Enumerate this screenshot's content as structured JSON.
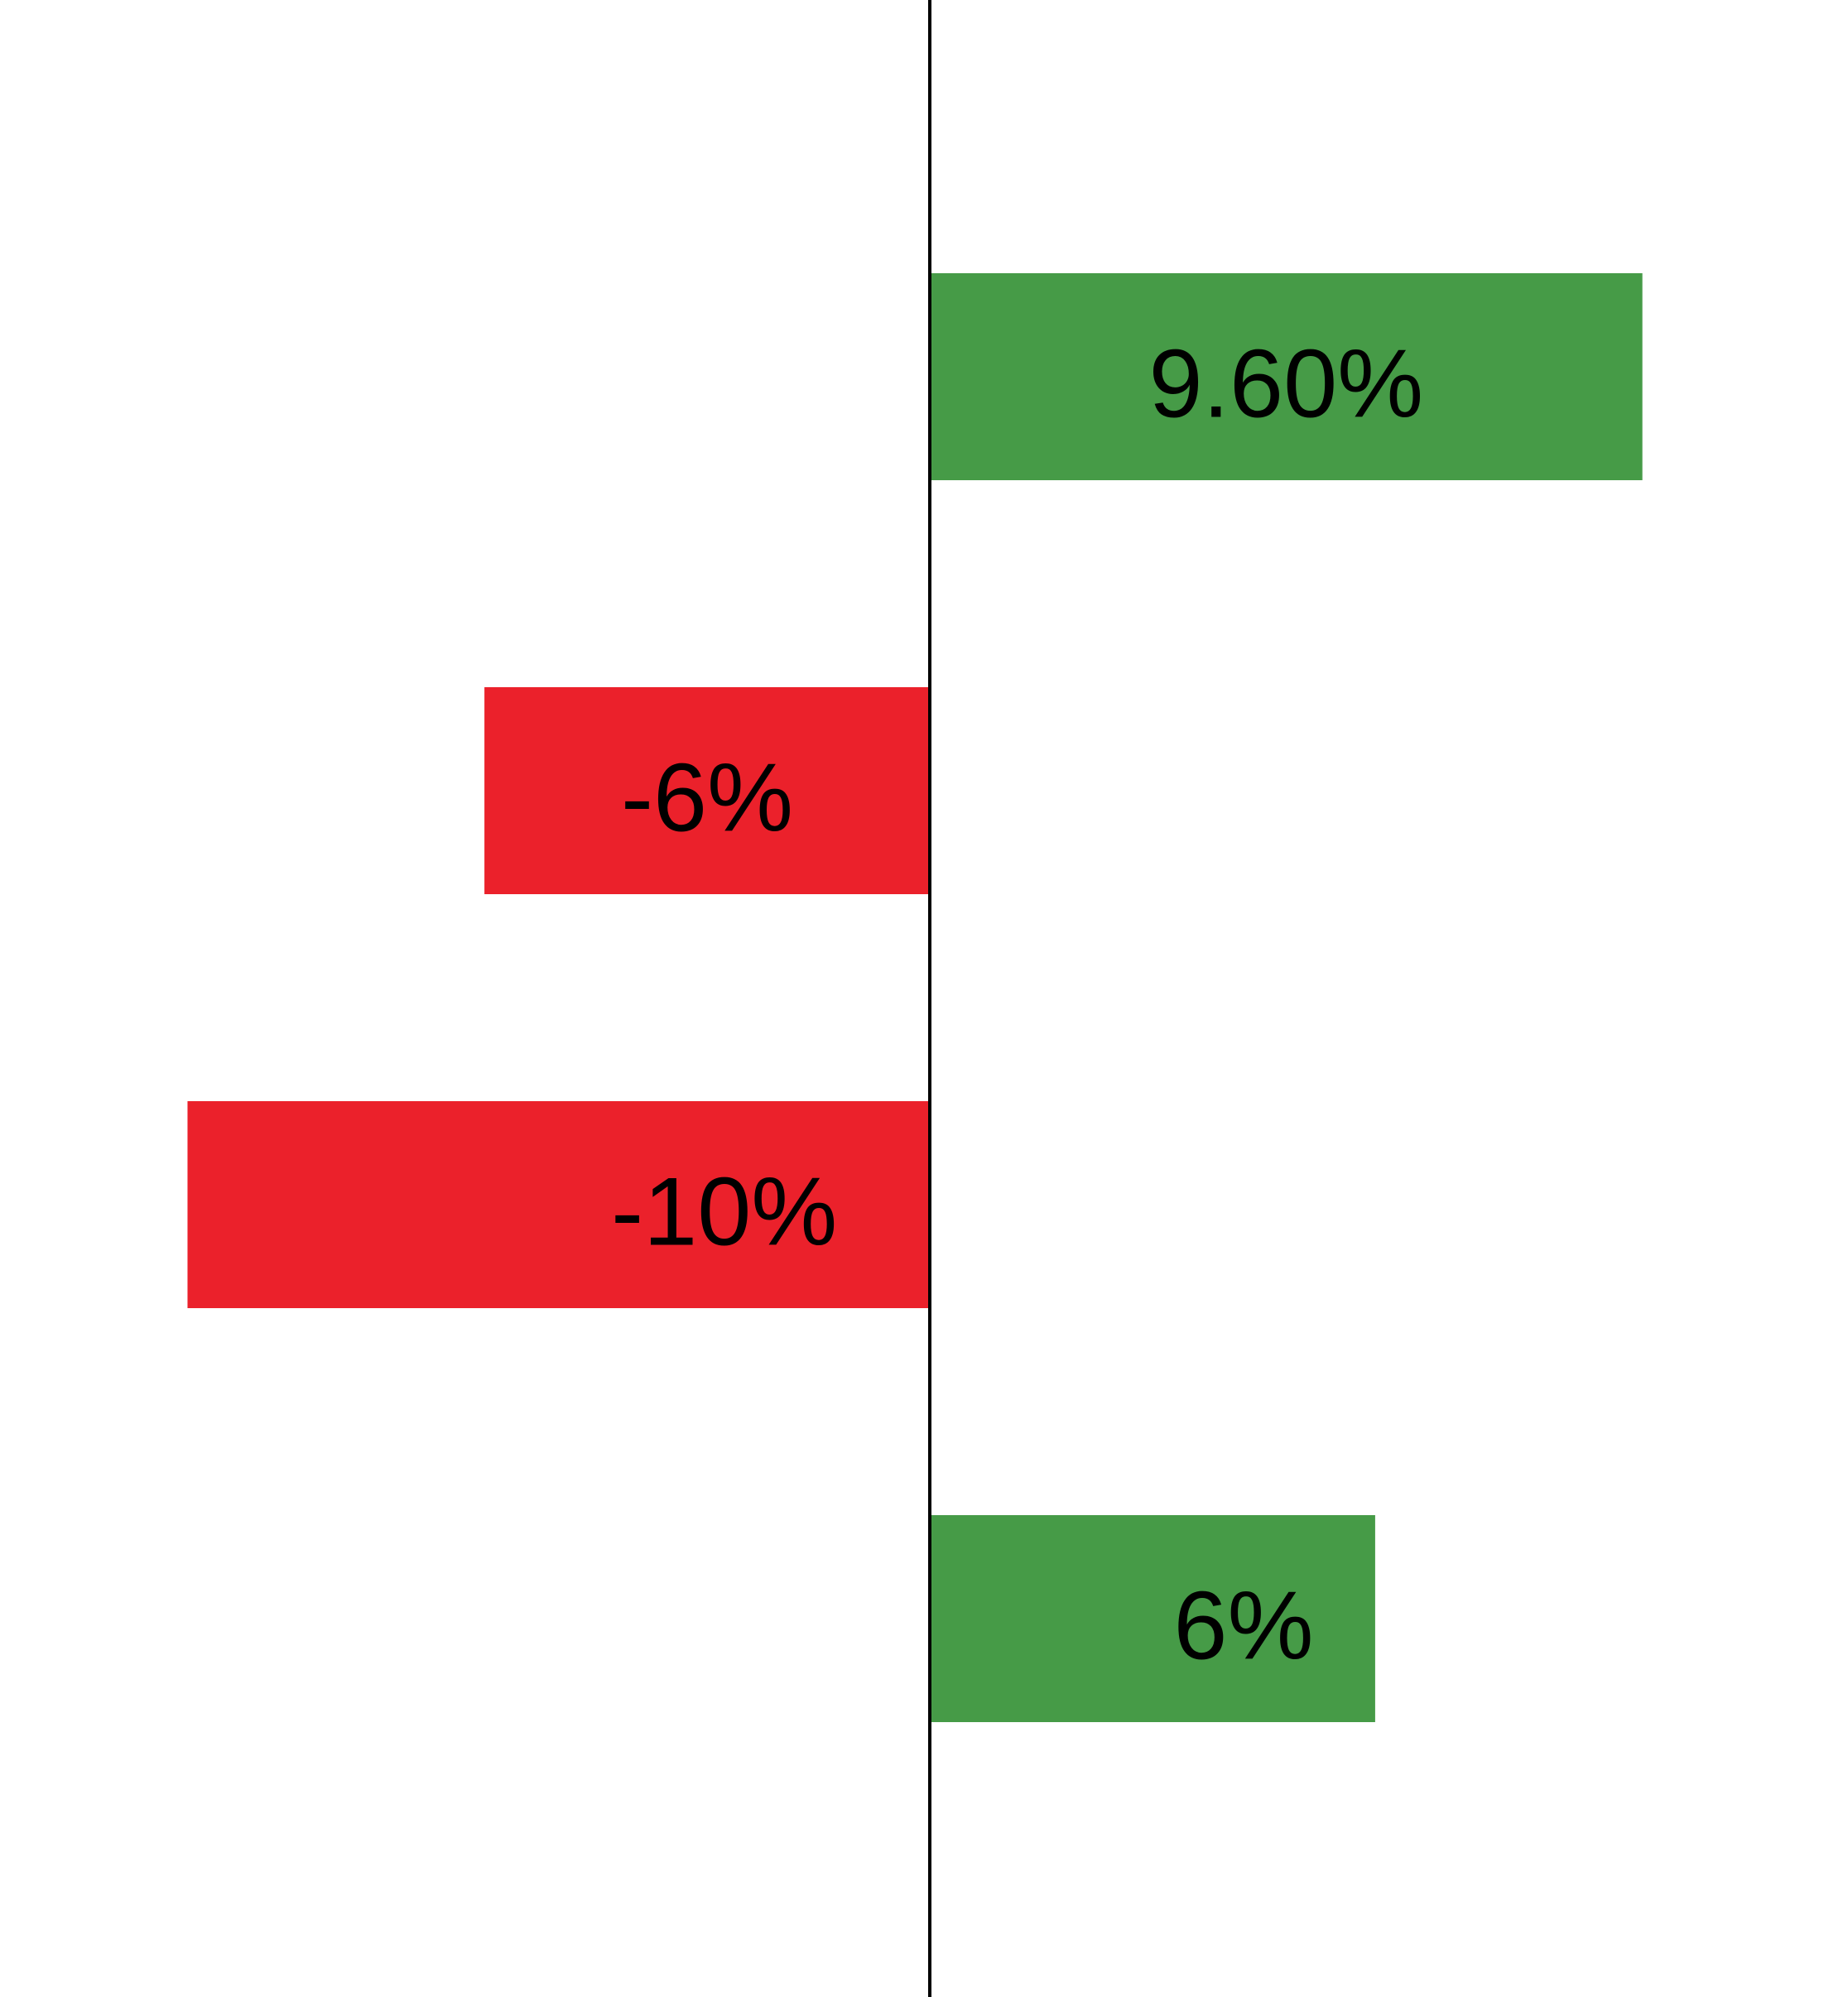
{
  "chart_data": {
    "type": "bar",
    "orientation": "horizontal",
    "categories": [
      "",
      "",
      "",
      ""
    ],
    "values": [
      9.6,
      -6,
      -10,
      6
    ],
    "data_labels": [
      "9.60%",
      "-6%",
      "-10%",
      "6%"
    ],
    "xlim": [
      -12.37,
      12.37
    ],
    "title": "",
    "xlabel": "",
    "ylabel": "",
    "grid": false,
    "legend": "none",
    "colors": {
      "positive": "#469b47",
      "negative": "#eb212b",
      "axis": "#000000"
    }
  }
}
